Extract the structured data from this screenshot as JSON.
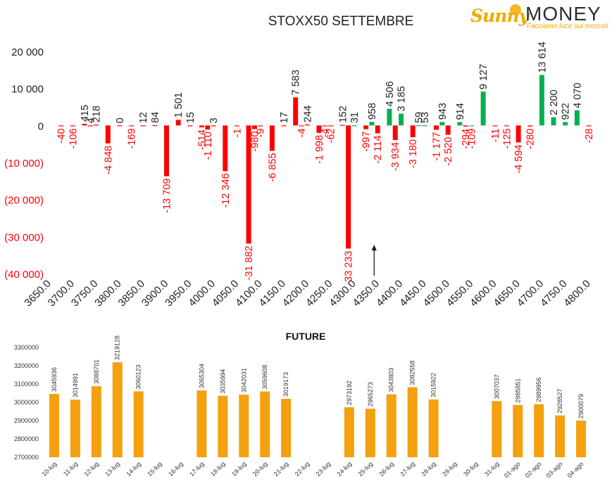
{
  "logo": {
    "brand_a": "Sunny",
    "brand_b": "MONEY",
    "tagline": "Facciamo luce sui mercati"
  },
  "colors": {
    "positive": "#00b050",
    "negative": "#ff0000",
    "future_bar": "#f5a00f",
    "axis_text": "#333333"
  },
  "chart_data": [
    {
      "type": "bar",
      "title": "STOXX50 SETTEMBRE",
      "xlabel": "",
      "ylabel": "",
      "ylim": [
        -40000,
        20000
      ],
      "yticks": [
        20000,
        10000,
        0,
        -10000,
        -20000,
        -30000,
        -40000
      ],
      "ytick_labels": [
        "20 000",
        "10 000",
        "0",
        "(10 000)",
        "(20 000)",
        "(30 000)",
        "(40 000)"
      ],
      "xlim": [
        3650,
        4800
      ],
      "xticks": [
        3650,
        3700,
        3750,
        3800,
        3850,
        3900,
        3950,
        4000,
        4050,
        4100,
        4150,
        4200,
        4250,
        4300,
        4350,
        4400,
        4450,
        4500,
        4550,
        4600,
        4650,
        4700,
        4750,
        4800
      ],
      "xtick_labels": [
        "3650.0",
        "3700.0",
        "3750.0",
        "3800.0",
        "3850.0",
        "3900.0",
        "3950.0",
        "4000.0",
        "4050.0",
        "4100.0",
        "4150.0",
        "4200.0",
        "4250.0",
        "4300.0",
        "4350.0",
        "4400.0",
        "4450.0",
        "4500.0",
        "4550.0",
        "4600.0",
        "4650.0",
        "4700.0",
        "4750.0",
        "4800.0"
      ],
      "grid": false,
      "marker_strike": 4350,
      "series": [
        {
          "strikes": [
            3675,
            3700,
            3725,
            3737.5,
            3750,
            3775,
            3800,
            3825,
            3850,
            3875,
            3900,
            3925,
            3950,
            3975,
            3987.5,
            4000,
            4025,
            4050,
            4075,
            4087.5,
            4100,
            4125,
            4150,
            4175,
            4187.5,
            4200,
            4225,
            4237.5,
            4250,
            4275,
            4287.5,
            4300,
            4325,
            4337.5,
            4350,
            4375,
            4387.5,
            4400,
            4425,
            4437.5,
            4450,
            4475,
            4487.5,
            4500,
            4525,
            4537.5,
            4550,
            4575,
            4600,
            4625,
            4650,
            4675,
            4700,
            4725,
            4750,
            4775,
            4800
          ],
          "values": [
            -40,
            -106,
            415,
            4,
            218,
            -4848,
            0,
            -169,
            12,
            84,
            -13709,
            1501,
            15,
            -514,
            -1110,
            3,
            -12346,
            -1,
            -31882,
            -980,
            -9,
            -6855,
            17,
            7583,
            -4,
            244,
            -1998,
            -4,
            -62,
            152,
            -33233,
            31,
            -997,
            958,
            -2114,
            4506,
            -3934,
            3185,
            -3180,
            59,
            53,
            -1177,
            943,
            -2520,
            914,
            -294,
            -109,
            9127,
            -11,
            -125,
            -4594,
            -280,
            13614,
            2200,
            922,
            4070,
            -28
          ]
        }
      ]
    },
    {
      "type": "bar",
      "title": "FUTURE",
      "xlabel": "",
      "ylabel": "",
      "ylim": [
        2700000,
        3300000
      ],
      "yticks": [
        2700000,
        2800000,
        2900000,
        3000000,
        3100000,
        3200000,
        3300000
      ],
      "ytick_labels": [
        "2700000",
        "2800000",
        "2900000",
        "3000000",
        "3100000",
        "3200000",
        "3300000"
      ],
      "grid": false,
      "categories": [
        "10-lug",
        "11-lug",
        "12-lug",
        "13-lug",
        "14-lug",
        "15-lug",
        "16-lug",
        "17-lug",
        "18-lug",
        "19-lug",
        "20-lug",
        "21-lug",
        "22-lug",
        "23-lug",
        "24-lug",
        "25-lug",
        "26-lug",
        "27-lug",
        "28-lug",
        "29-lug",
        "30-lug",
        "31-lug",
        "01-ago",
        "02-ago",
        "03-ago",
        "04-ago"
      ],
      "values": [
        3045936,
        3014991,
        3088701,
        3219128,
        3060123,
        null,
        null,
        3065304,
        3035994,
        3042031,
        3059608,
        3019173,
        null,
        null,
        2973192,
        2965273,
        3043803,
        3082558,
        3015922,
        null,
        null,
        3007037,
        2985851,
        2989956,
        2928527,
        2900079
      ],
      "value_labels": [
        "3045936",
        "3014991",
        "3088701",
        "3219128",
        "3060123",
        "",
        "",
        "3065304",
        "3035994",
        "3042031",
        "3059608",
        "3019173",
        "",
        "",
        "2973192",
        "2965273",
        "3043803",
        "3082558",
        "3015922",
        "",
        "",
        "3007037",
        "2985851",
        "2989956",
        "2928527",
        "2900079"
      ]
    }
  ]
}
